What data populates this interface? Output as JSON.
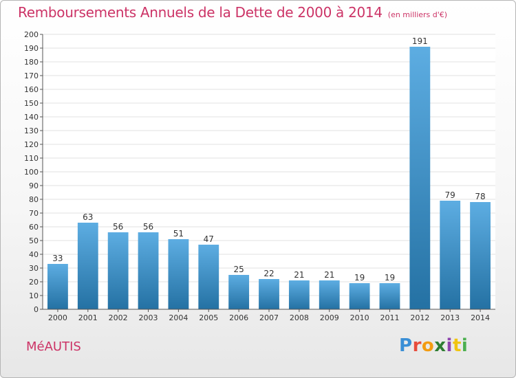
{
  "title": "Remboursements Annuels de la Dette de 2000 à 2014",
  "unit": "(en milliers d'€)",
  "commune": "MéAUTIS",
  "logo": {
    "letters": [
      "P",
      "r",
      "o",
      "x",
      "i",
      "t",
      "i"
    ],
    "colors": [
      "#3a8fd6",
      "#e74c3c",
      "#f39c12",
      "#2e7d32",
      "#8e44ad",
      "#f1c40f",
      "#4caf50"
    ]
  },
  "colors": {
    "title": "#cc3366",
    "bar_light": "#5dade2",
    "bar_dark": "#2471a3",
    "grid": "#e0e0e0",
    "axis": "#555555"
  },
  "chart_data": {
    "type": "bar",
    "categories": [
      "2000",
      "2001",
      "2002",
      "2003",
      "2004",
      "2005",
      "2006",
      "2007",
      "2008",
      "2009",
      "2010",
      "2011",
      "2012",
      "2013",
      "2014"
    ],
    "values": [
      33,
      63,
      56,
      56,
      51,
      47,
      25,
      22,
      21,
      21,
      19,
      19,
      191,
      79,
      78
    ],
    "ylim": [
      0,
      200
    ],
    "ytick_step": 10,
    "grid": true,
    "data_labels": true
  }
}
